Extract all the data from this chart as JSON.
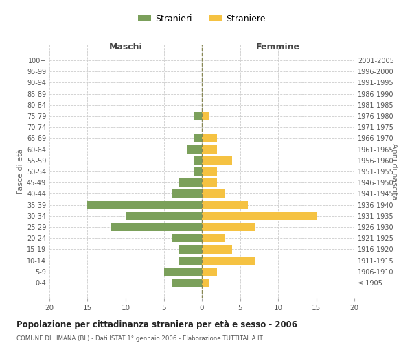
{
  "age_groups": [
    "100+",
    "95-99",
    "90-94",
    "85-89",
    "80-84",
    "75-79",
    "70-74",
    "65-69",
    "60-64",
    "55-59",
    "50-54",
    "45-49",
    "40-44",
    "35-39",
    "30-34",
    "25-29",
    "20-24",
    "15-19",
    "10-14",
    "5-9",
    "0-4"
  ],
  "birth_years": [
    "≤ 1905",
    "1906-1910",
    "1911-1915",
    "1916-1920",
    "1921-1925",
    "1926-1930",
    "1931-1935",
    "1936-1940",
    "1941-1945",
    "1946-1950",
    "1951-1955",
    "1956-1960",
    "1961-1965",
    "1966-1970",
    "1971-1975",
    "1976-1980",
    "1981-1985",
    "1986-1990",
    "1991-1995",
    "1996-2000",
    "2001-2005"
  ],
  "males": [
    0,
    0,
    0,
    0,
    0,
    1,
    0,
    1,
    2,
    1,
    1,
    3,
    4,
    15,
    10,
    12,
    4,
    3,
    3,
    5,
    4
  ],
  "females": [
    0,
    0,
    0,
    0,
    0,
    1,
    0,
    2,
    2,
    4,
    2,
    2,
    3,
    6,
    15,
    7,
    3,
    4,
    7,
    2,
    1
  ],
  "male_color": "#7BA05B",
  "female_color": "#F5C242",
  "title": "Popolazione per cittadinanza straniera per età e sesso - 2006",
  "subtitle": "COMUNE DI LIMANA (BL) - Dati ISTAT 1° gennaio 2006 - Elaborazione TUTTITALIA.IT",
  "xlabel_left": "Maschi",
  "xlabel_right": "Femmine",
  "ylabel_left": "Fasce di età",
  "ylabel_right": "Anni di nascita",
  "legend_stranieri": "Stranieri",
  "legend_straniere": "Straniere",
  "xlim": 20,
  "background_color": "#ffffff",
  "grid_color": "#cccccc",
  "bar_height": 0.75
}
